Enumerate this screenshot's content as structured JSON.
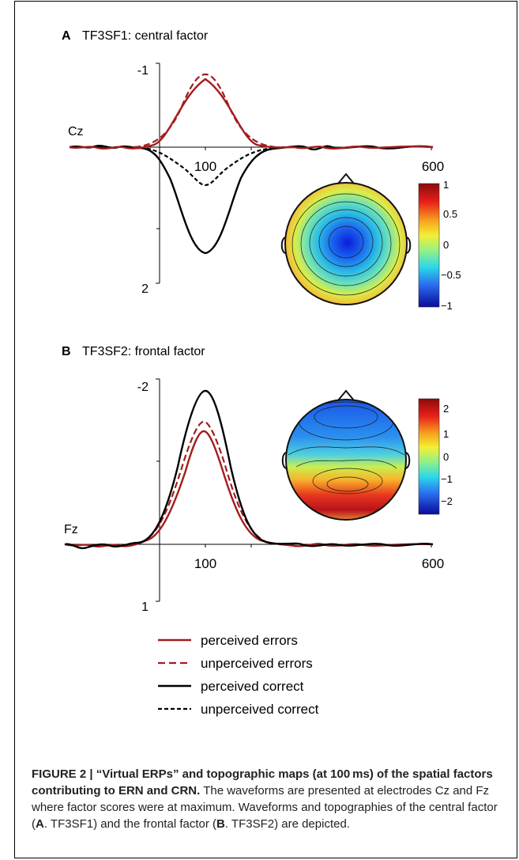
{
  "caption": {
    "label": "FIGURE 2 | “Virtual ERPs” and topographic maps (at 100 ms) of the spatial factors contributing to ERN and CRN.",
    "body1": " The waveforms are presented at electrodes Cz and Fz where factor scores were at maximum. Waveforms and topographies of the central factor (",
    "a": "A",
    "mid": ". TF3SF1) and the frontal factor (",
    "b": "B",
    "end": ". TF3SF2) are depicted."
  },
  "panel_a": {
    "letter": "A",
    "title": "TF3SF1: central factor",
    "electrode": "Cz",
    "colorbar_ticks": [
      "1",
      "0.5",
      "0",
      "−0.5",
      "−1"
    ]
  },
  "panel_b": {
    "letter": "B",
    "title": "TF3SF2: frontal factor",
    "electrode": "Fz",
    "colorbar_ticks": [
      "2",
      "1",
      "0",
      "−1",
      "−2"
    ]
  },
  "legend": [
    {
      "label": "perceived errors",
      "color": "#a31c1c",
      "dash": "solid"
    },
    {
      "label": "unperceived errors",
      "color": "#a31c1c",
      "dash": "dashed"
    },
    {
      "label": "perceived correct",
      "color": "#000000",
      "dash": "solid"
    },
    {
      "label": "unperceived correct",
      "color": "#000000",
      "dash": "dotted"
    }
  ],
  "chart_data": [
    {
      "type": "line",
      "title": "TF3SF1: central factor",
      "x_tick_labels": [
        "100",
        "600"
      ],
      "y_tick_labels": [
        "-1",
        "2"
      ],
      "ylim": [
        -1,
        2
      ],
      "series": [
        {
          "name": "perceived errors",
          "x": [
            -100,
            0,
            50,
            100,
            150,
            200,
            250,
            600
          ],
          "y": [
            0,
            -0.05,
            -0.6,
            -0.92,
            -0.6,
            -0.05,
            0,
            0
          ]
        },
        {
          "name": "unperceived errors",
          "x": [
            -100,
            0,
            50,
            100,
            150,
            200,
            250,
            600
          ],
          "y": [
            0,
            -0.06,
            -0.65,
            -0.97,
            -0.65,
            -0.06,
            0,
            0
          ]
        },
        {
          "name": "perceived correct",
          "x": [
            -100,
            0,
            50,
            100,
            150,
            200,
            250,
            600
          ],
          "y": [
            0,
            0.1,
            0.9,
            1.45,
            0.9,
            0.1,
            0,
            0
          ]
        },
        {
          "name": "unperceived correct",
          "x": [
            -100,
            0,
            50,
            100,
            150,
            200,
            250,
            600
          ],
          "y": [
            0,
            0.05,
            0.35,
            0.52,
            0.35,
            0.05,
            0,
            0
          ]
        }
      ]
    },
    {
      "type": "line",
      "title": "TF3SF2: frontal factor",
      "x_tick_labels": [
        "100",
        "600"
      ],
      "y_tick_labels": [
        "-2",
        "1"
      ],
      "ylim": [
        -2,
        1
      ],
      "series": [
        {
          "name": "perceived errors",
          "x": [
            -100,
            0,
            50,
            100,
            150,
            200,
            250,
            600
          ],
          "y": [
            0,
            -0.2,
            -1.1,
            -1.7,
            -1.1,
            -0.15,
            0,
            0
          ]
        },
        {
          "name": "unperceived errors",
          "x": [
            -100,
            0,
            50,
            100,
            150,
            200,
            250,
            600
          ],
          "y": [
            0,
            -0.22,
            -1.2,
            -1.8,
            -1.2,
            -0.17,
            0,
            0
          ]
        },
        {
          "name": "perceived correct",
          "x": [
            -100,
            0,
            50,
            100,
            150,
            200,
            250,
            600
          ],
          "y": [
            0,
            -0.25,
            -1.4,
            -2.05,
            -1.4,
            -0.2,
            0,
            0
          ]
        }
      ]
    }
  ]
}
